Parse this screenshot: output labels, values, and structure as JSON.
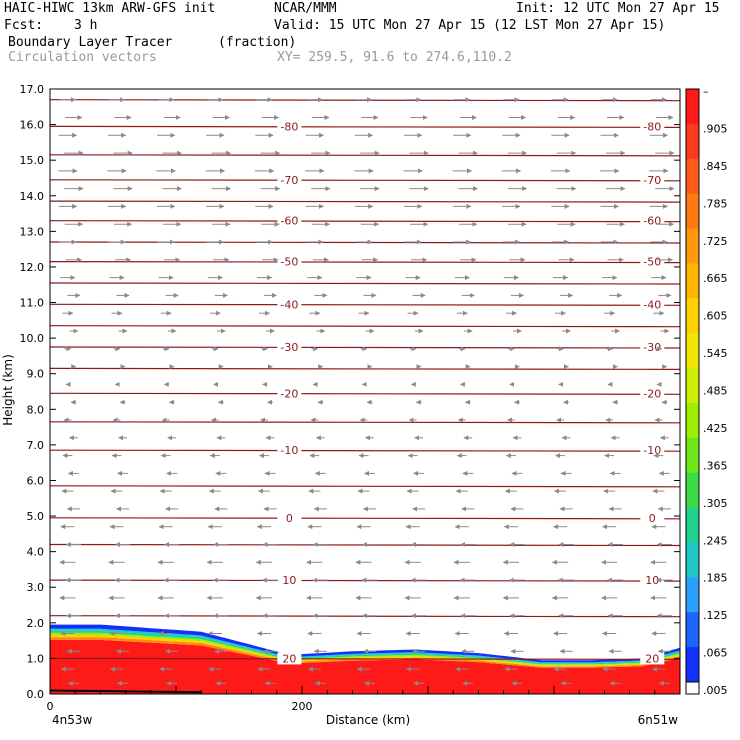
{
  "header": {
    "model": "HAIC-HIWC 13km ARW-GFS init",
    "org": "NCAR/MMM",
    "init": "Init: 12 UTC Mon 27 Apr 15",
    "fcst_label": "Fcst:",
    "fcst_value": "3 h",
    "valid": "Valid: 15 UTC Mon 27 Apr 15 (12 LST Mon 27 Apr 15)",
    "field_name": "Boundary Layer Tracer",
    "field_unit": "(fraction)",
    "vector_label": "Circulation vectors",
    "xy_label": "XY= 259.5, 91.6 to 274.6,110.2"
  },
  "chart_data": {
    "type": "area",
    "xlabel": "Distance (km)",
    "ylabel": "Height (km)",
    "xlim": [
      0,
      500
    ],
    "ylim": [
      0,
      17
    ],
    "x_ticks": [
      0,
      200
    ],
    "y_ticks": [
      "0.0",
      "1.0",
      "2.0",
      "3.0",
      "4.0",
      "5.0",
      "6.0",
      "7.0",
      "8.0",
      "9.0",
      "10.0",
      "11.0",
      "12.0",
      "13.0",
      "14.0",
      "15.0",
      "16.0",
      "17.0"
    ],
    "x_endpoints": [
      "4n53w",
      "6n51w"
    ],
    "tracer_top_x": [
      0,
      40,
      120,
      190,
      240,
      290,
      340,
      390,
      430,
      470,
      500
    ],
    "tracer_top_y": [
      1.95,
      1.95,
      1.75,
      1.1,
      1.2,
      1.25,
      1.15,
      0.95,
      0.95,
      1.0,
      1.3
    ],
    "isotherms": [
      {
        "label": "-80",
        "y": 15.95,
        "labeled": true
      },
      {
        "label": "-70",
        "y": 14.45,
        "labeled": true
      },
      {
        "label": "-60",
        "y": 13.3,
        "labeled": true
      },
      {
        "label": "-50",
        "y": 12.15,
        "labeled": true
      },
      {
        "label": "-40",
        "y": 10.95,
        "labeled": true
      },
      {
        "label": "-30",
        "y": 9.75,
        "labeled": true
      },
      {
        "label": "-20",
        "y": 8.45,
        "labeled": true
      },
      {
        "label": "-10",
        "y": 6.85,
        "labeled": true
      },
      {
        "label": "0",
        "y": 4.95,
        "labeled": true
      },
      {
        "label": "10",
        "y": 3.2,
        "labeled": true
      },
      {
        "label": "20",
        "y": 1.0,
        "labeled": true
      },
      {
        "label": "",
        "y": 16.7,
        "labeled": false
      },
      {
        "label": "",
        "y": 15.15,
        "labeled": false
      },
      {
        "label": "",
        "y": 13.85,
        "labeled": false
      },
      {
        "label": "",
        "y": 12.7,
        "labeled": false
      },
      {
        "label": "",
        "y": 11.55,
        "labeled": false
      },
      {
        "label": "",
        "y": 10.35,
        "labeled": false
      },
      {
        "label": "",
        "y": 9.15,
        "labeled": false
      },
      {
        "label": "",
        "y": 7.65,
        "labeled": false
      },
      {
        "label": "",
        "y": 5.85,
        "labeled": false
      },
      {
        "label": "",
        "y": 4.2,
        "labeled": false
      },
      {
        "label": "",
        "y": 2.2,
        "labeled": false
      }
    ],
    "colorbar": {
      "labels": [
        "–",
        ".905",
        ".845",
        ".785",
        ".725",
        ".665",
        ".605",
        ".545",
        ".485",
        ".425",
        ".365",
        ".305",
        ".245",
        ".185",
        ".125",
        ".065",
        ".005"
      ],
      "colors": [
        "#ff1a1a",
        "#ff3a1a",
        "#ff5a16",
        "#ff7a10",
        "#ff980a",
        "#ffb400",
        "#ffd000",
        "#f2e600",
        "#ccf000",
        "#9ff000",
        "#6fe61a",
        "#3cdc46",
        "#20d28c",
        "#1ec8c8",
        "#2aa0ff",
        "#1e64ff",
        "#1430ff"
      ]
    },
    "vectors": {
      "rows": [
        {
          "y": 16.7,
          "dir": 1,
          "len": 0.75
        },
        {
          "y": 16.2,
          "dir": 1,
          "len": 0.8
        },
        {
          "y": 15.7,
          "dir": 1,
          "len": 0.85
        },
        {
          "y": 15.2,
          "dir": 1,
          "len": 0.9
        },
        {
          "y": 14.7,
          "dir": 1,
          "len": 0.9
        },
        {
          "y": 14.2,
          "dir": 1,
          "len": 0.9
        },
        {
          "y": 13.7,
          "dir": 1,
          "len": 0.85
        },
        {
          "y": 13.2,
          "dir": 1,
          "len": 0.85
        },
        {
          "y": 12.7,
          "dir": 1,
          "len": 0.8
        },
        {
          "y": 12.2,
          "dir": 1,
          "len": 0.75
        },
        {
          "y": 11.7,
          "dir": 1,
          "len": 0.7
        },
        {
          "y": 11.2,
          "dir": 1,
          "len": 0.6
        },
        {
          "y": 10.7,
          "dir": 1,
          "len": 0.5
        },
        {
          "y": 10.2,
          "dir": 1,
          "len": 0.4
        },
        {
          "y": 9.7,
          "dir": 1,
          "len": 0.3
        },
        {
          "y": 9.2,
          "dir": 1,
          "len": 0.2
        },
        {
          "y": 8.7,
          "dir": -1,
          "len": 0.15
        },
        {
          "y": 8.2,
          "dir": -1,
          "len": 0.25
        },
        {
          "y": 7.7,
          "dir": -1,
          "len": 0.35
        },
        {
          "y": 7.2,
          "dir": -1,
          "len": 0.4
        },
        {
          "y": 6.7,
          "dir": -1,
          "len": 0.45
        },
        {
          "y": 6.2,
          "dir": -1,
          "len": 0.5
        },
        {
          "y": 5.7,
          "dir": -1,
          "len": 0.55
        },
        {
          "y": 5.2,
          "dir": -1,
          "len": 0.6
        },
        {
          "y": 4.7,
          "dir": -1,
          "len": 0.65
        },
        {
          "y": 4.2,
          "dir": -1,
          "len": 0.7
        },
        {
          "y": 3.7,
          "dir": -1,
          "len": 0.75
        },
        {
          "y": 3.2,
          "dir": -1,
          "len": 0.75
        },
        {
          "y": 2.7,
          "dir": -1,
          "len": 0.75
        },
        {
          "y": 2.2,
          "dir": -1,
          "len": 0.7
        },
        {
          "y": 1.7,
          "dir": -1,
          "len": 0.65
        },
        {
          "y": 1.2,
          "dir": -1,
          "len": 0.6
        },
        {
          "y": 0.7,
          "dir": -1,
          "len": 0.6
        },
        {
          "y": 0.3,
          "dir": -1,
          "len": 0.5
        }
      ],
      "columns_x": [
        14,
        53,
        92,
        131,
        170,
        210,
        249,
        288,
        327,
        366,
        405,
        444,
        483
      ]
    }
  }
}
